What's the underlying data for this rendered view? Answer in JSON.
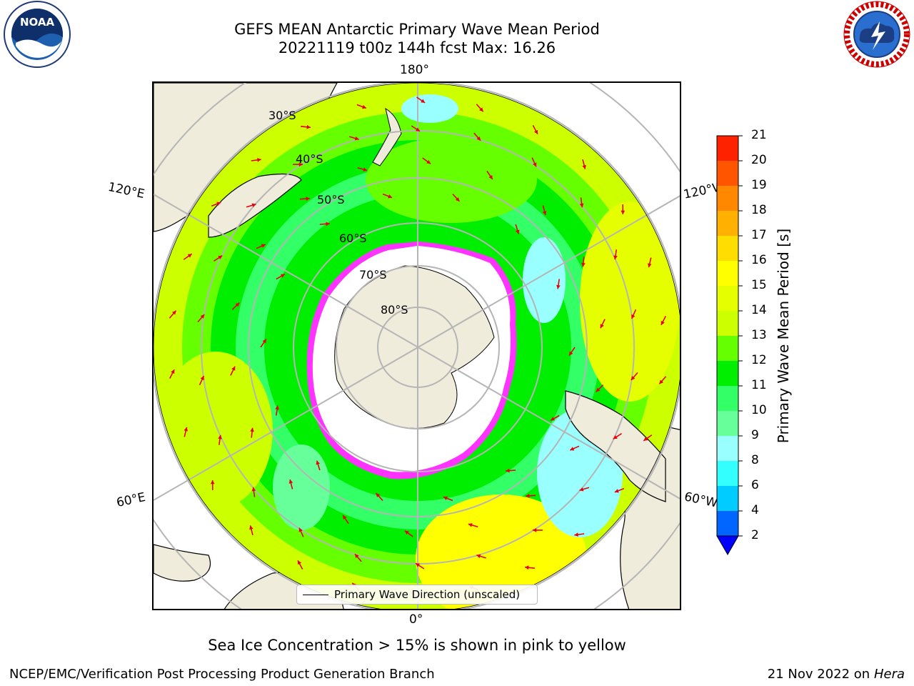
{
  "header": {
    "title_line1": "GEFS MEAN Antarctic Primary Wave Mean Period",
    "title_line2": "20221119 t00z 144h fcst   Max: 16.26"
  },
  "map": {
    "projection": "south-polar-stereographic",
    "longitude_labels": {
      "top": "180°",
      "bottom": "0°",
      "upper_left": "120°E",
      "lower_left": "60°E",
      "upper_right": "120°W",
      "lower_right": "60°W"
    },
    "latitude_labels": [
      "30°S",
      "40°S",
      "50°S",
      "60°S",
      "70°S",
      "80°S"
    ],
    "land_color": "#efecdc",
    "sea_ice_colors": [
      "#ff33ff",
      "#ff99cc",
      "#ffcc66"
    ],
    "arrow_color": "#e8000b"
  },
  "legend": {
    "label": "Primary Wave Direction (unscaled)"
  },
  "colorbar": {
    "title": "Primary Wave Mean Period [s]",
    "ticks": [
      "2",
      "4",
      "6",
      "8",
      "9",
      "10",
      "11",
      "12",
      "13",
      "14",
      "15",
      "16",
      "17",
      "18",
      "19",
      "20",
      "21"
    ],
    "colors": [
      "#0066ff",
      "#00ccff",
      "#33ffff",
      "#99ffff",
      "#66ff99",
      "#33ff66",
      "#00ee00",
      "#66ff00",
      "#ccff00",
      "#e6ff00",
      "#ffff00",
      "#ffdd00",
      "#ffb000",
      "#ff8800",
      "#ff5500",
      "#ff2200"
    ],
    "extend_color": "#0000ff"
  },
  "footnote": "Sea Ice Concentration > 15% is shown in pink to yellow",
  "credits": {
    "left": "NCEP/EMC/Verification Post Processing Product Generation Branch",
    "right_date": "21 Nov 2022 on",
    "right_machine": "Hera"
  },
  "logos": {
    "noaa": "NOAA",
    "nws": "NATIONAL WEATHER SERVICE"
  }
}
